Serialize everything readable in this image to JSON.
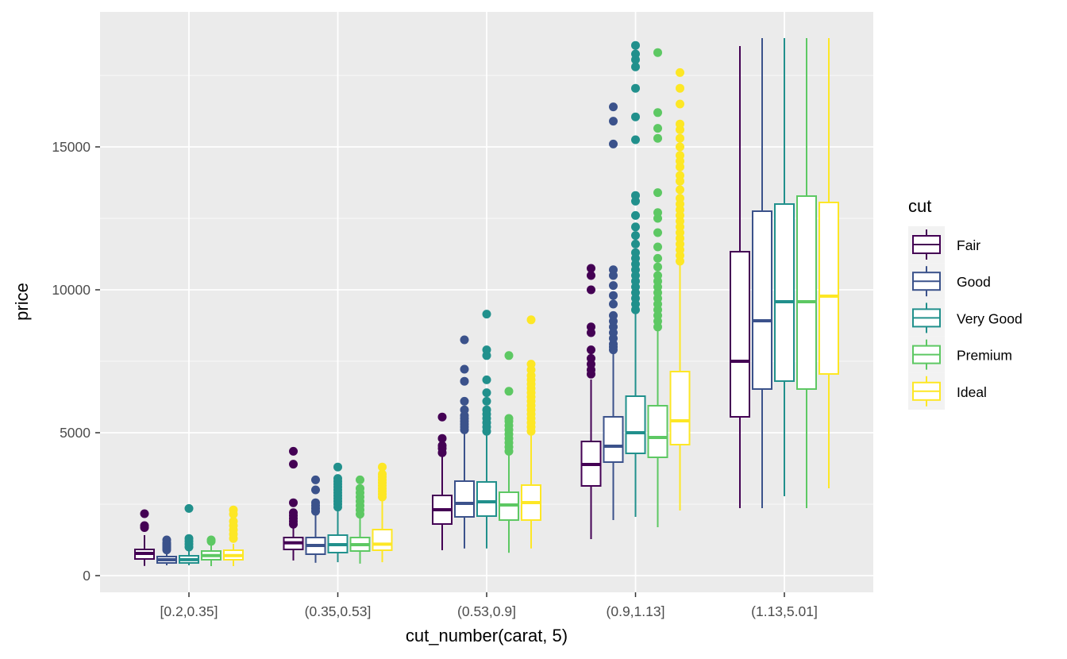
{
  "chart_data": {
    "type": "boxplot",
    "xlabel": "cut_number(carat, 5)",
    "ylabel": "price",
    "categories": [
      "[0.2,0.35]",
      "(0.35,0.53]",
      "(0.53,0.9]",
      "(0.9,1.13]",
      "(1.13,5.01]"
    ],
    "ylim": [
      -1000,
      19500
    ],
    "yticks": [
      0,
      5000,
      10000,
      15000
    ],
    "ytick_labels": [
      "0",
      "5000",
      "10000",
      "15000"
    ],
    "grid": true,
    "legend": {
      "title": "cut",
      "position": "right"
    },
    "series": [
      {
        "name": "Fair",
        "color": "#440154",
        "boxes": [
          {
            "lower": 340,
            "q1": 583,
            "median": 778,
            "q3": 917,
            "upper": 1417,
            "outliers": [
              1680,
              1750,
              2167
            ]
          },
          {
            "lower": 530,
            "q1": 917,
            "median": 1150,
            "q3": 1333,
            "upper": 1722,
            "outliers": [
              1800,
              1900,
              2000,
              2100,
              2200,
              2550,
              3900,
              4350
            ]
          },
          {
            "lower": 890,
            "q1": 1806,
            "median": 2306,
            "q3": 2806,
            "upper": 4200,
            "outliers": [
              4300,
              4450,
              4550,
              4800,
              5550
            ]
          },
          {
            "lower": 1278,
            "q1": 3139,
            "median": 3889,
            "q3": 4694,
            "upper": 6861,
            "outliers": [
              7050,
              7200,
              7400,
              7600,
              7900,
              8500,
              8700,
              10000,
              10500,
              10750
            ]
          },
          {
            "lower": 2361,
            "q1": 5556,
            "median": 7500,
            "q3": 11333,
            "upper": 18528,
            "outliers": []
          }
        ]
      },
      {
        "name": "Good",
        "color": "#3B528B",
        "boxes": [
          {
            "lower": 361,
            "q1": 444,
            "median": 556,
            "q3": 667,
            "upper": 850,
            "outliers": [
              900,
              950,
              1000,
              1050,
              1100,
              1150,
              1250
            ]
          },
          {
            "lower": 450,
            "q1": 750,
            "median": 1055,
            "q3": 1333,
            "upper": 2150,
            "outliers": [
              2250,
              2350,
              2450,
              2550,
              3000,
              3350
            ]
          },
          {
            "lower": 950,
            "q1": 2056,
            "median": 2528,
            "q3": 3306,
            "upper": 5000,
            "outliers": [
              5100,
              5200,
              5300,
              5400,
              5500,
              5600,
              5800,
              6100,
              6800,
              7222,
              8250
            ]
          },
          {
            "lower": 1944,
            "q1": 3972,
            "median": 4528,
            "q3": 5556,
            "upper": 7800,
            "outliers": [
              7900,
              8000,
              8100,
              8300,
              8500,
              8700,
              8900,
              9100,
              9500,
              9800,
              10150,
              10500,
              10700,
              15100,
              15900,
              16400
            ]
          },
          {
            "lower": 2361,
            "q1": 6528,
            "median": 8917,
            "q3": 12750,
            "upper": 18806,
            "outliers": []
          }
        ]
      },
      {
        "name": "Very Good",
        "color": "#21908C",
        "boxes": [
          {
            "lower": 361,
            "q1": 444,
            "median": 560,
            "q3": 694,
            "upper": 900,
            "outliers": [
              1000,
              1100,
              1200,
              1300,
              2350
            ]
          },
          {
            "lower": 470,
            "q1": 806,
            "median": 1083,
            "q3": 1417,
            "upper": 2300,
            "outliers": [
              2400,
              2500,
              2600,
              2700,
              2800,
              2900,
              3000,
              3100,
              3200,
              3300,
              3400,
              3800
            ]
          },
          {
            "lower": 950,
            "q1": 2083,
            "median": 2583,
            "q3": 3278,
            "upper": 4950,
            "outliers": [
              5050,
              5200,
              5350,
              5500,
              5650,
              5800,
              6100,
              6400,
              6850,
              7700,
              7900,
              9150
            ]
          },
          {
            "lower": 2056,
            "q1": 4278,
            "median": 5000,
            "q3": 6278,
            "upper": 9200,
            "outliers": [
              9300,
              9500,
              9700,
              9900,
              10100,
              10300,
              10500,
              10700,
              10900,
              11100,
              11300,
              11600,
              11900,
              12200,
              12600,
              13100,
              13300,
              15250,
              16050,
              17050,
              17800,
              18050,
              18250,
              18550
            ]
          },
          {
            "lower": 2778,
            "q1": 6806,
            "median": 9583,
            "q3": 13000,
            "upper": 18806,
            "outliers": []
          }
        ]
      },
      {
        "name": "Premium",
        "color": "#5DC863",
        "boxes": [
          {
            "lower": 333,
            "q1": 556,
            "median": 700,
            "q3": 861,
            "upper": 1055,
            "outliers": [
              1200,
              1250
            ]
          },
          {
            "lower": 420,
            "q1": 861,
            "median": 1083,
            "q3": 1333,
            "upper": 2050,
            "outliers": [
              2150,
              2300,
              2450,
              2600,
              2750,
              2900,
              3050,
              3350
            ]
          },
          {
            "lower": 800,
            "q1": 1944,
            "median": 2472,
            "q3": 2917,
            "upper": 4250,
            "outliers": [
              4350,
              4500,
              4650,
              4800,
              4950,
              5100,
              5250,
              5400,
              5500,
              6450,
              7700
            ]
          },
          {
            "lower": 1694,
            "q1": 4139,
            "median": 4833,
            "q3": 5944,
            "upper": 8600,
            "outliers": [
              8700,
              8900,
              9100,
              9300,
              9500,
              9700,
              9900,
              10100,
              10300,
              10500,
              10800,
              11100,
              11500,
              12000,
              12500,
              12700,
              13400,
              15300,
              15650,
              16200,
              18300
            ]
          },
          {
            "lower": 2361,
            "q1": 6528,
            "median": 9583,
            "q3": 13278,
            "upper": 18806,
            "outliers": []
          }
        ]
      },
      {
        "name": "Ideal",
        "color": "#FDE725",
        "boxes": [
          {
            "lower": 333,
            "q1": 556,
            "median": 700,
            "q3": 889,
            "upper": 1111,
            "outliers": [
              1300,
              1450,
              1600,
              1750,
              1900,
              2150,
              2300
            ]
          },
          {
            "lower": 470,
            "q1": 889,
            "median": 1100,
            "q3": 1611,
            "upper": 2650,
            "outliers": [
              2750,
              2850,
              2950,
              3050,
              3150,
              3250,
              3350,
              3450,
              3550,
              3800
            ]
          },
          {
            "lower": 950,
            "q1": 1944,
            "median": 2556,
            "q3": 3167,
            "upper": 4950,
            "outliers": [
              5050,
              5200,
              5350,
              5500,
              5650,
              5800,
              5950,
              6100,
              6250,
              6400,
              6550,
              6700,
              6850,
              7000,
              7200,
              7400,
              8950
            ]
          },
          {
            "lower": 2278,
            "q1": 4583,
            "median": 5417,
            "q3": 7139,
            "upper": 10900,
            "outliers": [
              11000,
              11200,
              11400,
              11600,
              11800,
              12000,
              12200,
              12400,
              12600,
              12800,
              13000,
              13200,
              13500,
              13800,
              14000,
              14300,
              14500,
              14700,
              15000,
              15300,
              15600,
              15800,
              16500,
              17050,
              17600
            ]
          },
          {
            "lower": 3056,
            "q1": 7056,
            "median": 9778,
            "q3": 13056,
            "upper": 18806,
            "outliers": []
          }
        ]
      }
    ]
  }
}
